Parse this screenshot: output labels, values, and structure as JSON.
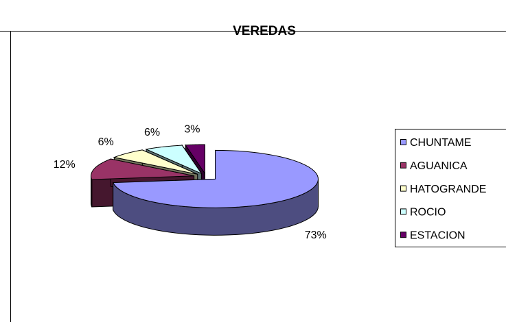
{
  "chart_data": {
    "type": "pie3d",
    "title": "VEREDAS",
    "categories": [
      "CHUNTAME",
      "AGUANICA",
      "HATOGRANDE",
      "ROCIO",
      "ESTACION"
    ],
    "values": [
      73,
      12,
      6,
      6,
      3
    ],
    "value_labels": [
      "73%",
      "12%",
      "6%",
      "6%",
      "3%"
    ],
    "colors": [
      "#9999ff",
      "#993366",
      "#ffffcc",
      "#ccffff",
      "#660066"
    ],
    "legend": "right"
  }
}
